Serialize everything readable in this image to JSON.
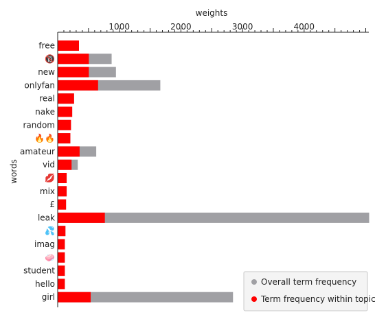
{
  "chart_data": {
    "type": "bar",
    "orientation": "horizontal",
    "xlabel": "weights",
    "ylabel": "words",
    "x_axis_position": "top",
    "xlim": [
      0,
      5050
    ],
    "x_ticks": [
      1000,
      2000,
      3000,
      4000
    ],
    "grid": false,
    "legend_position": "bottom-right",
    "categories": [
      "free",
      "🔞",
      "new",
      "onlyfan",
      "real",
      "nake",
      "random",
      "🔥🔥",
      "amateur",
      "vid",
      "💋",
      "mix",
      "£",
      "leak",
      "💦",
      "imag",
      "🧼",
      "student",
      "hello",
      "girl"
    ],
    "series": [
      {
        "name": "Overall term frequency",
        "color": "#a0a0a4",
        "values": [
          340,
          870,
          940,
          1660,
          260,
          230,
          210,
          200,
          620,
          320,
          140,
          140,
          130,
          5050,
          120,
          110,
          110,
          110,
          110,
          2840
        ]
      },
      {
        "name": "Term frequency within topic",
        "color": "#ff0000",
        "values": [
          340,
          500,
          500,
          650,
          260,
          230,
          210,
          200,
          350,
          220,
          140,
          140,
          130,
          760,
          120,
          110,
          110,
          110,
          110,
          530
        ]
      }
    ]
  }
}
